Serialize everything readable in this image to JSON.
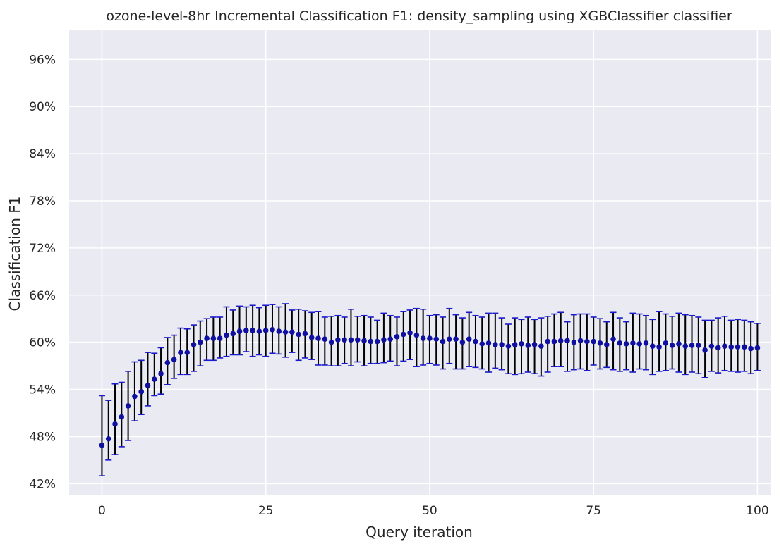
{
  "chart_data": {
    "type": "scatter",
    "title": "ozone-level-8hr Incremental Classification F1: density_sampling using XGBClassifier classifier",
    "xlabel": "Query iteration",
    "ylabel": "Classification F1",
    "xlim": [
      -5,
      102
    ],
    "ylim": [
      0.405,
      0.998
    ],
    "x_ticks": [
      0,
      25,
      50,
      75,
      100
    ],
    "x_tick_labels": [
      "0",
      "25",
      "50",
      "75",
      "100"
    ],
    "y_ticks": [
      0.42,
      0.48,
      0.54,
      0.6,
      0.66,
      0.72,
      0.78,
      0.84,
      0.9,
      0.96
    ],
    "y_tick_labels": [
      "42%",
      "48%",
      "54%",
      "60%",
      "66%",
      "72%",
      "78%",
      "84%",
      "90%",
      "96%"
    ],
    "grid": true,
    "colors": {
      "background": "#eaeaf2",
      "grid": "#ffffff",
      "marker": "#1010a0",
      "errorbar": "#000000",
      "cap": "#1a1ad0"
    },
    "series": [
      {
        "x": [
          0,
          1,
          2,
          3,
          4,
          5,
          6,
          7,
          8,
          9,
          10,
          11,
          12,
          13,
          14,
          15,
          16,
          17,
          18,
          19,
          20,
          21,
          22,
          23,
          24,
          25,
          26,
          27,
          28,
          29,
          30,
          31,
          32,
          33,
          34,
          35,
          36,
          37,
          38,
          39,
          40,
          41,
          42,
          43,
          44,
          45,
          46,
          47,
          48,
          49,
          50,
          51,
          52,
          53,
          54,
          55,
          56,
          57,
          58,
          59,
          60,
          61,
          62,
          63,
          64,
          65,
          66,
          67,
          68,
          69,
          70,
          71,
          72,
          73,
          74,
          75,
          76,
          77,
          78,
          79,
          80,
          81,
          82,
          83,
          84,
          85,
          86,
          87,
          88,
          89,
          90,
          91,
          92,
          93,
          94,
          95,
          96,
          97,
          98,
          99,
          100
        ],
        "values": [
          0.469,
          0.477,
          0.496,
          0.505,
          0.519,
          0.531,
          0.537,
          0.545,
          0.553,
          0.56,
          0.574,
          0.578,
          0.587,
          0.587,
          0.597,
          0.6,
          0.605,
          0.605,
          0.605,
          0.609,
          0.611,
          0.614,
          0.615,
          0.615,
          0.614,
          0.615,
          0.616,
          0.614,
          0.613,
          0.613,
          0.61,
          0.611,
          0.606,
          0.605,
          0.604,
          0.6,
          0.603,
          0.603,
          0.603,
          0.603,
          0.602,
          0.601,
          0.601,
          0.603,
          0.604,
          0.607,
          0.61,
          0.612,
          0.609,
          0.605,
          0.605,
          0.604,
          0.601,
          0.604,
          0.604,
          0.6,
          0.604,
          0.601,
          0.598,
          0.599,
          0.597,
          0.597,
          0.595,
          0.597,
          0.598,
          0.596,
          0.597,
          0.595,
          0.601,
          0.601,
          0.602,
          0.602,
          0.6,
          0.602,
          0.601,
          0.601,
          0.599,
          0.597,
          0.604,
          0.599,
          0.598,
          0.599,
          0.598,
          0.599,
          0.595,
          0.594,
          0.599,
          0.596,
          0.598,
          0.595,
          0.596,
          0.596,
          0.59,
          0.595,
          0.593,
          0.595,
          0.594,
          0.594,
          0.594,
          0.592,
          0.593
        ],
        "lower": [
          0.43,
          0.45,
          0.457,
          0.467,
          0.475,
          0.5,
          0.508,
          0.519,
          0.532,
          0.534,
          0.546,
          0.554,
          0.559,
          0.559,
          0.563,
          0.57,
          0.577,
          0.577,
          0.58,
          0.582,
          0.584,
          0.584,
          0.588,
          0.582,
          0.584,
          0.582,
          0.586,
          0.585,
          0.581,
          0.587,
          0.577,
          0.58,
          0.578,
          0.571,
          0.571,
          0.57,
          0.57,
          0.573,
          0.57,
          0.575,
          0.57,
          0.573,
          0.573,
          0.574,
          0.576,
          0.57,
          0.576,
          0.578,
          0.569,
          0.571,
          0.573,
          0.571,
          0.566,
          0.573,
          0.566,
          0.566,
          0.569,
          0.568,
          0.566,
          0.562,
          0.567,
          0.565,
          0.56,
          0.559,
          0.56,
          0.562,
          0.56,
          0.557,
          0.562,
          0.569,
          0.569,
          0.563,
          0.565,
          0.566,
          0.564,
          0.571,
          0.566,
          0.568,
          0.565,
          0.563,
          0.565,
          0.562,
          0.566,
          0.565,
          0.559,
          0.563,
          0.564,
          0.566,
          0.562,
          0.559,
          0.562,
          0.56,
          0.555,
          0.563,
          0.561,
          0.564,
          0.563,
          0.562,
          0.563,
          0.56,
          0.564
        ],
        "upper": [
          0.532,
          0.526,
          0.547,
          0.549,
          0.563,
          0.575,
          0.577,
          0.587,
          0.586,
          0.593,
          0.606,
          0.609,
          0.618,
          0.617,
          0.622,
          0.627,
          0.63,
          0.632,
          0.632,
          0.645,
          0.641,
          0.646,
          0.645,
          0.647,
          0.644,
          0.647,
          0.648,
          0.645,
          0.649,
          0.641,
          0.642,
          0.64,
          0.638,
          0.639,
          0.632,
          0.633,
          0.634,
          0.632,
          0.642,
          0.633,
          0.634,
          0.632,
          0.628,
          0.637,
          0.634,
          0.632,
          0.639,
          0.641,
          0.643,
          0.642,
          0.634,
          0.635,
          0.632,
          0.643,
          0.635,
          0.631,
          0.638,
          0.634,
          0.632,
          0.637,
          0.637,
          0.631,
          0.623,
          0.631,
          0.629,
          0.632,
          0.629,
          0.631,
          0.633,
          0.636,
          0.638,
          0.626,
          0.635,
          0.636,
          0.636,
          0.632,
          0.63,
          0.626,
          0.638,
          0.631,
          0.626,
          0.637,
          0.636,
          0.634,
          0.629,
          0.639,
          0.636,
          0.633,
          0.637,
          0.635,
          0.634,
          0.632,
          0.628,
          0.628,
          0.631,
          0.633,
          0.628,
          0.629,
          0.628,
          0.626,
          0.624
        ]
      }
    ]
  }
}
